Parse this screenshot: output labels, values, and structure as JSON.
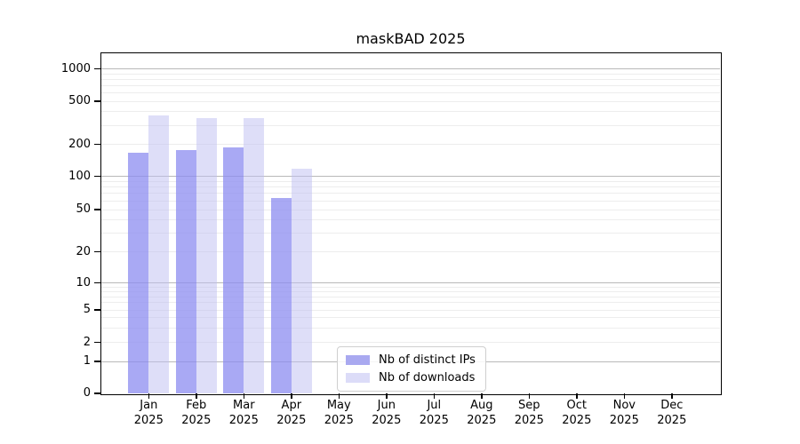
{
  "chart_data": {
    "type": "bar",
    "title": "maskBAD 2025",
    "year": "2025",
    "months": [
      "Jan",
      "Feb",
      "Mar",
      "Apr",
      "May",
      "Jun",
      "Jul",
      "Aug",
      "Sep",
      "Oct",
      "Nov",
      "Dec"
    ],
    "series": [
      {
        "name": "Nb of distinct IPs",
        "fill": "rgba(140,140,240,0.75)",
        "legend_color": "#a9a9f0",
        "values": [
          165,
          178,
          187,
          64,
          null,
          null,
          null,
          null,
          null,
          null,
          null,
          null
        ]
      },
      {
        "name": "Nb of downloads",
        "fill": "rgba(190,190,242,0.5)",
        "legend_color": "#dcdcf8",
        "values": [
          370,
          347,
          352,
          117,
          null,
          null,
          null,
          null,
          null,
          null,
          null,
          null
        ]
      }
    ],
    "yticks": [
      0,
      1,
      2,
      5,
      10,
      20,
      50,
      100,
      200,
      500,
      1000
    ],
    "yscale": "symlog",
    "ylim": [
      0,
      1500
    ],
    "grid": {
      "on": true,
      "major_color": "#b9b9b9",
      "minor_color": "#ededed"
    },
    "legend": {
      "position": "inside-bottom-center"
    }
  }
}
